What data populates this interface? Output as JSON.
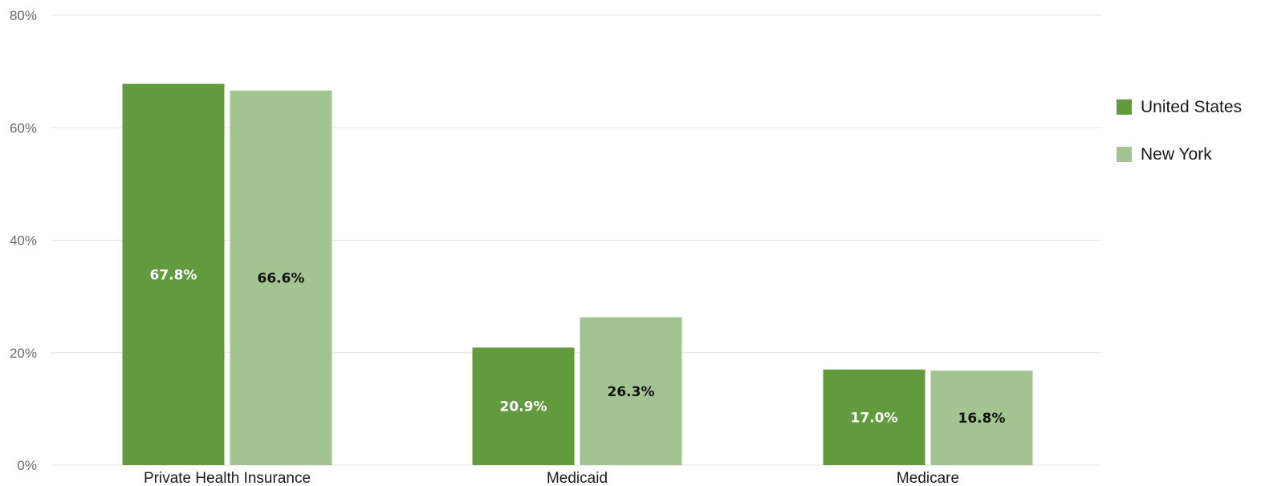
{
  "chart_data": {
    "type": "bar",
    "categories": [
      "Private Health Insurance",
      "Medicaid",
      "Medicare"
    ],
    "series": [
      {
        "name": "United States",
        "values": [
          67.8,
          20.9,
          17.0
        ],
        "labels": [
          "67.8%",
          "20.9%",
          "17.0%"
        ],
        "color": "#629a3e",
        "label_color": "#ffffff"
      },
      {
        "name": "New York",
        "values": [
          66.6,
          26.3,
          16.8
        ],
        "labels": [
          "66.6%",
          "26.3%",
          "16.8%"
        ],
        "color": "#a3c491",
        "label_color": "#111111"
      }
    ],
    "y_ticks": [
      {
        "value": 0,
        "label": "0%"
      },
      {
        "value": 20,
        "label": "20%"
      },
      {
        "value": 40,
        "label": "40%"
      },
      {
        "value": 60,
        "label": "60%"
      },
      {
        "value": 80,
        "label": "80%"
      }
    ],
    "ylim": [
      0,
      80
    ],
    "grid": true,
    "legend_position": "right",
    "title": "",
    "xlabel": "",
    "ylabel": ""
  }
}
